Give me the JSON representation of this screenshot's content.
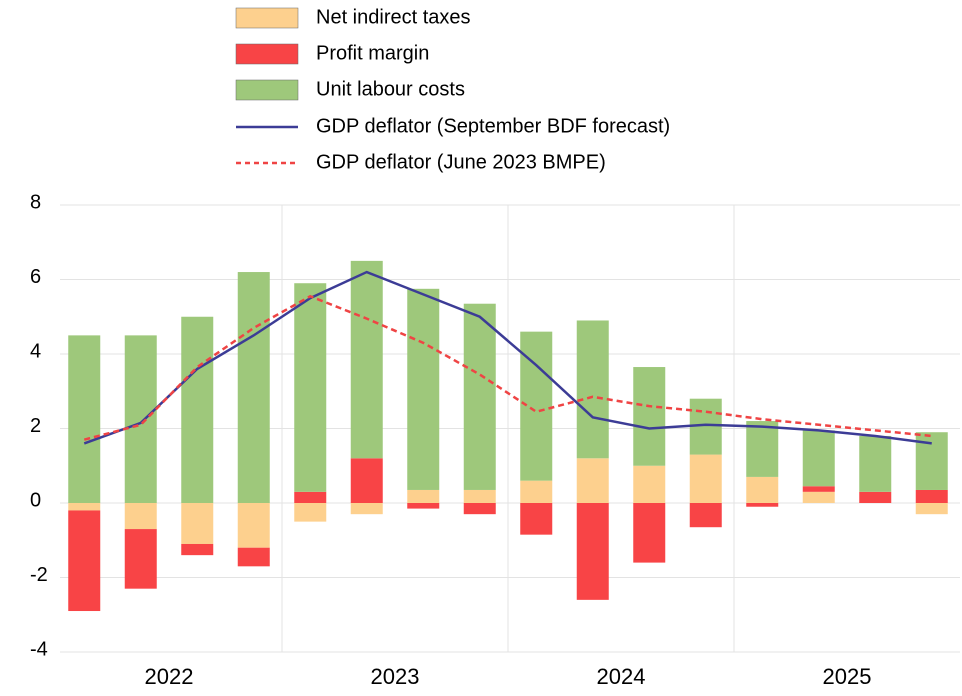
{
  "chart_data": {
    "type": "bar",
    "stacked": true,
    "categories": [
      null,
      null,
      null,
      null,
      null,
      null,
      null,
      null,
      null,
      null,
      null,
      null,
      null,
      null,
      null,
      null
    ],
    "year_labels": [
      "2022",
      "2023",
      "2024",
      "2025"
    ],
    "ylim": [
      -4,
      8
    ],
    "yticks": [
      -4,
      -2,
      0,
      2,
      4,
      6,
      8
    ],
    "grid": true,
    "series": [
      {
        "name": "Net indirect taxes",
        "type": "bar",
        "color": "#fdd08e",
        "values": [
          -0.2,
          -0.7,
          -1.1,
          -1.2,
          -0.5,
          -0.3,
          0.35,
          0.35,
          0.6,
          1.2,
          1.0,
          1.3,
          0.7,
          0.3,
          0,
          -0.3
        ]
      },
      {
        "name": "Profit margin",
        "type": "bar",
        "color": "#f84446",
        "values": [
          -2.7,
          -1.6,
          -0.3,
          -0.5,
          0.3,
          1.2,
          -0.15,
          -0.3,
          -0.85,
          -2.6,
          -1.6,
          -0.65,
          -0.1,
          0.15,
          0.3,
          0.35
        ]
      },
      {
        "name": "Unit labour costs",
        "type": "bar",
        "color": "#9ec87b",
        "values": [
          4.5,
          4.5,
          5.0,
          6.2,
          5.6,
          5.3,
          5.4,
          5.0,
          4.0,
          3.7,
          2.65,
          1.5,
          1.5,
          1.5,
          1.5,
          1.55
        ]
      },
      {
        "name": "GDP deflator (September BDF forecast)",
        "type": "line",
        "color": "#3c3c96",
        "line_style": "solid",
        "values": [
          1.6,
          2.15,
          3.6,
          4.5,
          5.5,
          6.2,
          5.6,
          5.0,
          3.7,
          2.3,
          2.0,
          2.1,
          2.05,
          1.95,
          1.8,
          1.6
        ]
      },
      {
        "name": "GDP deflator (June 2023 BMPE)",
        "type": "line",
        "color": "#ef4444",
        "line_style": "dashed",
        "values": [
          1.7,
          2.1,
          3.65,
          4.7,
          5.55,
          4.95,
          4.3,
          3.45,
          2.45,
          2.85,
          2.6,
          2.45,
          2.25,
          2.1,
          1.95,
          1.8
        ]
      }
    ]
  }
}
